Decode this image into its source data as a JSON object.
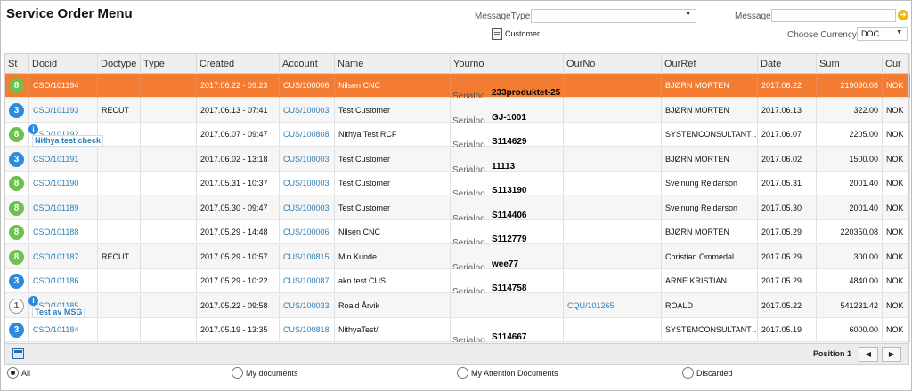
{
  "title": "Service Order Menu",
  "filters": {
    "message_type_label": "MessageType",
    "message_type_value": "",
    "message_label": "Message",
    "customer_label": "Customer",
    "currency_label": "Choose Currency",
    "currency_value": "DOC"
  },
  "columns": [
    "St",
    "Docid",
    "Doctype",
    "Type",
    "Created",
    "Account",
    "Name",
    "Yourno",
    "OurNo",
    "OurRef",
    "Date",
    "Sum",
    "Cur"
  ],
  "serial_label": "Serialno",
  "rows": [
    {
      "st": "8",
      "docid": "CSO/101194",
      "doctype": "",
      "type": "",
      "created": "2017.06.22 - 09:23",
      "account": "CUS/100006",
      "name": "Nilsen CNC",
      "yourno": "233produktet-25",
      "ourno": "",
      "ourref": "BJØRN MORTEN",
      "date": "2017.06.22",
      "sum": "219090.08",
      "cur": "NOK",
      "note": ""
    },
    {
      "st": "3",
      "docid": "CSO/101193",
      "doctype": "RECUT",
      "type": "",
      "created": "2017.06.13 - 07:41",
      "account": "CUS/100003",
      "name": "Test Customer",
      "yourno": "GJ-1001",
      "ourno": "",
      "ourref": "BJØRN MORTEN",
      "date": "2017.06.13",
      "sum": "322.00",
      "cur": "NOK",
      "note": ""
    },
    {
      "st": "8",
      "docid": "CSO/101192",
      "doctype": "",
      "type": "",
      "created": "2017.06.07 - 09:47",
      "account": "CUS/100808",
      "name": "Nithya Test RCF",
      "yourno": "S114629",
      "ourno": "",
      "ourref": "SYSTEMCONSULTANT…",
      "date": "2017.06.07",
      "sum": "2205.00",
      "cur": "NOK",
      "note": "Nithya test check"
    },
    {
      "st": "3",
      "docid": "CSO/101191",
      "doctype": "",
      "type": "",
      "created": "2017.06.02 - 13:18",
      "account": "CUS/100003",
      "name": "Test Customer",
      "yourno": "11113",
      "ourno": "",
      "ourref": "BJØRN MORTEN",
      "date": "2017.06.02",
      "sum": "1500.00",
      "cur": "NOK",
      "note": ""
    },
    {
      "st": "8",
      "docid": "CSO/101190",
      "doctype": "",
      "type": "",
      "created": "2017.05.31 - 10:37",
      "account": "CUS/100003",
      "name": "Test Customer",
      "yourno": "S113190",
      "ourno": "",
      "ourref": "Sveinung Reidarson",
      "date": "2017.05.31",
      "sum": "2001.40",
      "cur": "NOK",
      "note": ""
    },
    {
      "st": "8",
      "docid": "CSO/101189",
      "doctype": "",
      "type": "",
      "created": "2017.05.30 - 09:47",
      "account": "CUS/100003",
      "name": "Test Customer",
      "yourno": "S114406",
      "ourno": "",
      "ourref": "Sveinung Reidarson",
      "date": "2017.05.30",
      "sum": "2001.40",
      "cur": "NOK",
      "note": ""
    },
    {
      "st": "8",
      "docid": "CSO/101188",
      "doctype": "",
      "type": "",
      "created": "2017.05.29 - 14:48",
      "account": "CUS/100006",
      "name": "Nilsen CNC",
      "yourno": "S112779",
      "ourno": "",
      "ourref": "BJØRN MORTEN",
      "date": "2017.05.29",
      "sum": "220350.08",
      "cur": "NOK",
      "note": ""
    },
    {
      "st": "8",
      "docid": "CSO/101187",
      "doctype": "RECUT",
      "type": "",
      "created": "2017.05.29 - 10:57",
      "account": "CUS/100815",
      "name": "Min Kunde",
      "yourno": "wee77",
      "ourno": "",
      "ourref": "Christian Ommedal",
      "date": "2017.05.29",
      "sum": "300.00",
      "cur": "NOK",
      "note": ""
    },
    {
      "st": "3",
      "docid": "CSO/101186",
      "doctype": "",
      "type": "",
      "created": "2017.05.29 - 10:22",
      "account": "CUS/100087",
      "name": "akn test CUS",
      "yourno": "S114758",
      "ourno": "",
      "ourref": "ARNE KRISTIAN",
      "date": "2017.05.29",
      "sum": "4840.00",
      "cur": "NOK",
      "note": ""
    },
    {
      "st": "1",
      "docid": "CSO/101185",
      "doctype": "",
      "type": "",
      "created": "2017.05.22 - 09:58",
      "account": "CUS/100033",
      "name": "Roald Årvik",
      "yourno": "",
      "ourno": "CQU/101265",
      "ourref": "ROALD",
      "date": "2017.05.22",
      "sum": "541231.42",
      "cur": "NOK",
      "note": "Test av MSG"
    },
    {
      "st": "3",
      "docid": "CSO/101184",
      "doctype": "",
      "type": "",
      "created": "2017.05.19 - 13:35",
      "account": "CUS/100818",
      "name": "NithyaTest/",
      "yourno": "S114667",
      "ourno": "",
      "ourref": "SYSTEMCONSULTANT…",
      "date": "2017.05.19",
      "sum": "6000.00",
      "cur": "NOK",
      "note": ""
    }
  ],
  "footer": {
    "position_label": "Position 1",
    "prev": "◀",
    "next": "▶"
  },
  "radios": {
    "all": "All",
    "mine": "My documents",
    "attention": "My Attention Documents",
    "discarded": "Discarded",
    "selected": "all"
  },
  "colors": {
    "selected_row": "#f47b32",
    "status_8": "#6cc24a",
    "status_3": "#2b8be0",
    "link": "#2d7fb5"
  },
  "icons": {
    "customer": "document-icon",
    "go": "arrow-right-icon",
    "footer": "window-icon",
    "note": "info-icon"
  }
}
